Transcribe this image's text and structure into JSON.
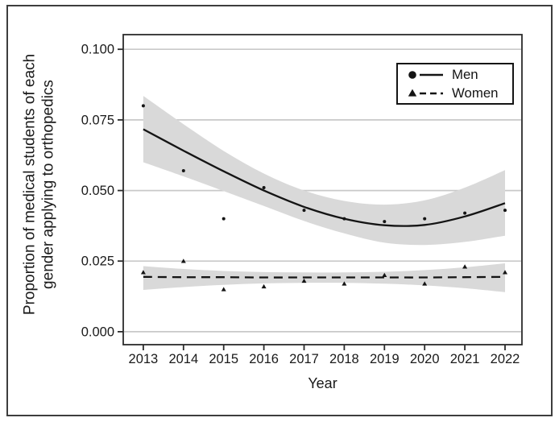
{
  "figure": {
    "y_axis_title_line1": "Proportion of medical students of each",
    "y_axis_title_line2": "gender applying to orthopedics",
    "x_axis_title": "Year"
  },
  "legend": {
    "position": "top-right",
    "items": [
      {
        "label": "Men",
        "marker": "filled-circle",
        "line_style": "solid"
      },
      {
        "label": "Women",
        "marker": "filled-triangle",
        "line_style": "dashed"
      }
    ]
  },
  "colors": {
    "line": "#141414",
    "band": "#d9d9d9",
    "gridline": "#c9c9c9",
    "frame": "#2b2b2b",
    "text": "#1a1a1a",
    "figure_border": "#3d3d3d",
    "background": "#ffffff"
  },
  "chart_data": {
    "type": "scatter",
    "title": "",
    "xlabel": "Year",
    "ylabel": "Proportion of medical students of each gender applying to orthopedics",
    "grid": "horizontal",
    "legend_position": "top-right",
    "x": [
      2013,
      2014,
      2015,
      2016,
      2017,
      2018,
      2019,
      2020,
      2021,
      2022
    ],
    "xtick_labels": [
      "2013",
      "2014",
      "2015",
      "2016",
      "2017",
      "2018",
      "2019",
      "2020",
      "2021",
      "2022"
    ],
    "yticks": [
      0,
      0.025,
      0.05,
      0.075,
      0.1
    ],
    "ytick_labels": [
      "0.000",
      "0.025",
      "0.050",
      "0.075",
      "0.100"
    ],
    "xlim": [
      2012.5,
      2022.42
    ],
    "ylim": [
      -0.0046,
      0.1052
    ],
    "series": [
      {
        "name": "Men",
        "marker": "circle",
        "line_style": "solid",
        "values": [
          0.08,
          0.057,
          0.04,
          0.051,
          0.043,
          0.04,
          0.039,
          0.04,
          0.042,
          0.043
        ],
        "fit": [
          0.0717,
          0.0641,
          0.0568,
          0.05,
          0.0442,
          0.04,
          0.0377,
          0.0378,
          0.0408,
          0.0455
        ],
        "band_upper": [
          0.0835,
          0.0735,
          0.064,
          0.056,
          0.05,
          0.0463,
          0.045,
          0.0465,
          0.051,
          0.0572
        ],
        "band_lower": [
          0.06,
          0.055,
          0.0498,
          0.0445,
          0.0392,
          0.0348,
          0.0315,
          0.0307,
          0.0318,
          0.034
        ]
      },
      {
        "name": "Women",
        "marker": "triangle",
        "line_style": "dashed",
        "values": [
          0.021,
          0.025,
          0.015,
          0.016,
          0.018,
          0.017,
          0.02,
          0.017,
          0.023,
          0.021
        ],
        "fit": [
          0.0194,
          0.0193,
          0.0193,
          0.0192,
          0.0192,
          0.0192,
          0.0192,
          0.0192,
          0.0193,
          0.0194
        ],
        "band_upper": [
          0.0232,
          0.0222,
          0.0215,
          0.0211,
          0.021,
          0.021,
          0.0212,
          0.0218,
          0.0228,
          0.0242
        ],
        "band_lower": [
          0.0148,
          0.0158,
          0.0166,
          0.0171,
          0.0173,
          0.0173,
          0.017,
          0.0164,
          0.0154,
          0.014
        ]
      }
    ]
  }
}
